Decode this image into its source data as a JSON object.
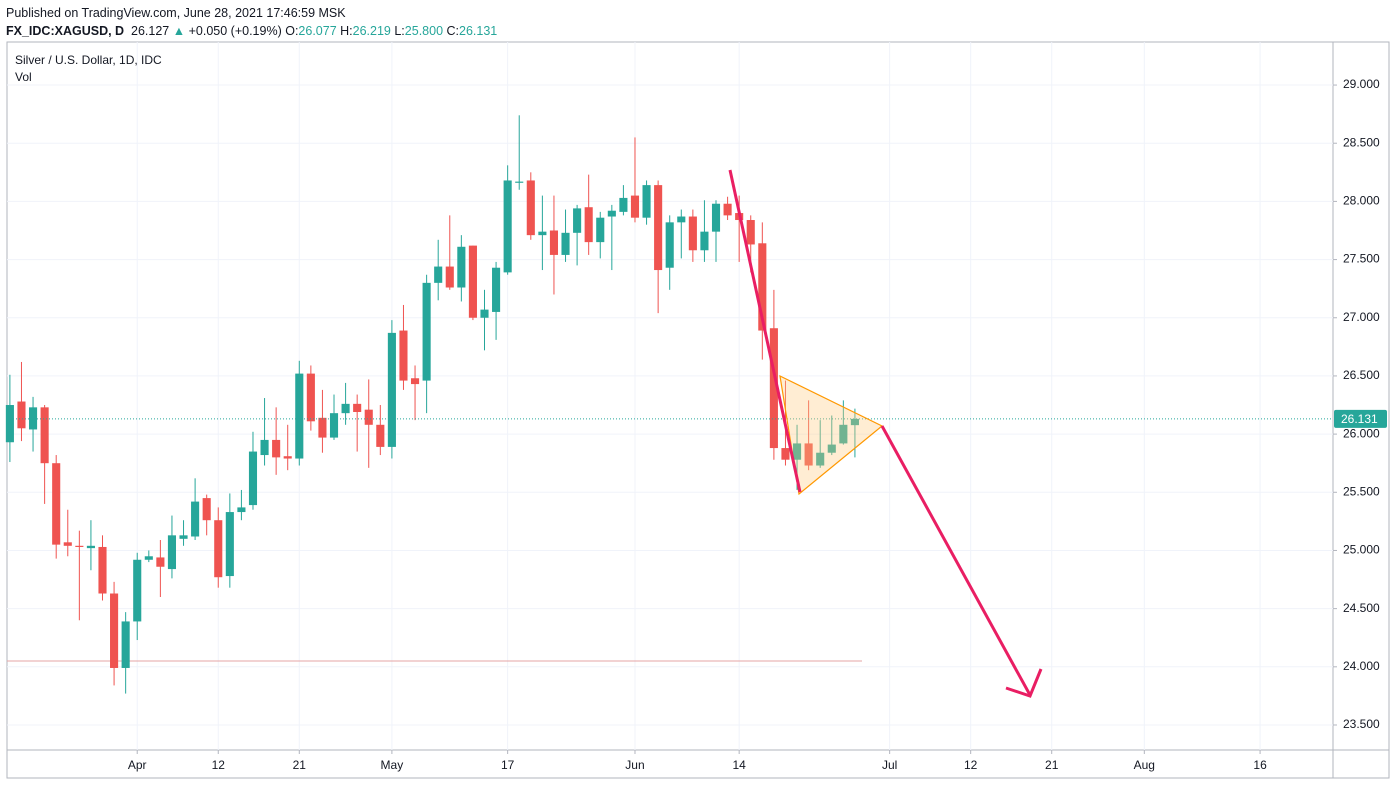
{
  "header": {
    "published": "Published on TradingView.com, June 28, 2021 17:46:59 MSK",
    "symbol": "FX_IDC:XAGUSD, D",
    "price": "26.127",
    "arrow": "▲",
    "change": "+0.050 (+0.19%)",
    "ohlc": [
      {
        "label": "O:",
        "value": "26.077"
      },
      {
        "label": "H:",
        "value": "26.219"
      },
      {
        "label": "L:",
        "value": "25.800"
      },
      {
        "label": "C:",
        "value": "26.131"
      }
    ]
  },
  "chart_data": {
    "type": "candlestick",
    "title": "Silver / U.S. Dollar, 1D, IDC",
    "volume_label": "Vol",
    "up_color": "#26a69a",
    "down_color": "#ef5350",
    "x": [
      "2021-03-17",
      "2021-03-18",
      "2021-03-19",
      "2021-03-22",
      "2021-03-23",
      "2021-03-24",
      "2021-03-25",
      "2021-03-26",
      "2021-03-29",
      "2021-03-30",
      "2021-03-31",
      "2021-04-01",
      "2021-04-02",
      "2021-04-05",
      "2021-04-06",
      "2021-04-07",
      "2021-04-08",
      "2021-04-09",
      "2021-04-12",
      "2021-04-13",
      "2021-04-14",
      "2021-04-15",
      "2021-04-16",
      "2021-04-19",
      "2021-04-20",
      "2021-04-21",
      "2021-04-22",
      "2021-04-23",
      "2021-04-26",
      "2021-04-27",
      "2021-04-28",
      "2021-04-29",
      "2021-04-30",
      "2021-05-03",
      "2021-05-04",
      "2021-05-05",
      "2021-05-06",
      "2021-05-07",
      "2021-05-10",
      "2021-05-11",
      "2021-05-12",
      "2021-05-13",
      "2021-05-14",
      "2021-05-17",
      "2021-05-18",
      "2021-05-19",
      "2021-05-20",
      "2021-05-21",
      "2021-05-24",
      "2021-05-25",
      "2021-05-26",
      "2021-05-27",
      "2021-05-28",
      "2021-05-31",
      "2021-06-01",
      "2021-06-02",
      "2021-06-03",
      "2021-06-04",
      "2021-06-07",
      "2021-06-08",
      "2021-06-09",
      "2021-06-10",
      "2021-06-11",
      "2021-06-14",
      "2021-06-15",
      "2021-06-16",
      "2021-06-17",
      "2021-06-18",
      "2021-06-21",
      "2021-06-22",
      "2021-06-23",
      "2021-06-24",
      "2021-06-25",
      "2021-06-28"
    ],
    "open": [
      25.93,
      26.28,
      26.04,
      26.23,
      25.75,
      25.07,
      25.04,
      25.02,
      25.03,
      24.63,
      23.99,
      24.39,
      24.92,
      24.94,
      24.84,
      25.1,
      25.12,
      25.45,
      25.26,
      24.78,
      25.33,
      25.39,
      25.82,
      25.95,
      25.81,
      25.79,
      26.52,
      26.14,
      25.97,
      26.18,
      26.26,
      26.21,
      26.08,
      25.89,
      26.89,
      26.48,
      26.46,
      27.3,
      27.44,
      27.26,
      27.62,
      27.0,
      27.05,
      27.39,
      28.16,
      28.18,
      27.71,
      27.75,
      27.54,
      27.73,
      27.95,
      27.65,
      27.87,
      27.91,
      28.05,
      27.86,
      28.14,
      27.43,
      27.82,
      27.87,
      27.58,
      27.74,
      27.98,
      27.9,
      27.84,
      27.64,
      26.91,
      25.88,
      25.78,
      25.92,
      25.73,
      25.84,
      25.92,
      26.077
    ],
    "high": [
      26.51,
      26.62,
      26.32,
      26.25,
      25.82,
      25.35,
      25.17,
      25.26,
      25.13,
      24.73,
      24.47,
      24.98,
      25.0,
      25.09,
      25.3,
      25.26,
      25.62,
      25.48,
      25.37,
      25.49,
      25.52,
      26.02,
      26.31,
      26.23,
      26.08,
      26.63,
      26.59,
      26.38,
      26.34,
      26.44,
      26.34,
      26.47,
      26.25,
      26.98,
      27.11,
      26.59,
      27.37,
      27.67,
      27.88,
      27.71,
      27.62,
      27.24,
      27.48,
      28.31,
      28.74,
      28.25,
      28.05,
      28.05,
      27.93,
      27.97,
      28.23,
      27.91,
      27.97,
      28.14,
      28.55,
      28.18,
      28.18,
      27.88,
      27.93,
      27.93,
      28.01,
      28.01,
      28.04,
      28.05,
      27.88,
      27.82,
      27.24,
      26.46,
      26.08,
      26.29,
      26.12,
      26.16,
      26.29,
      26.219
    ],
    "low": [
      25.76,
      25.94,
      25.85,
      25.4,
      24.93,
      24.95,
      24.4,
      24.83,
      24.57,
      23.84,
      23.77,
      24.23,
      24.9,
      24.6,
      24.76,
      25.04,
      25.09,
      25.13,
      24.68,
      24.68,
      25.26,
      25.35,
      25.73,
      25.65,
      25.69,
      25.73,
      26.03,
      25.84,
      25.95,
      26.08,
      25.85,
      25.71,
      25.82,
      25.79,
      26.38,
      26.12,
      26.18,
      27.15,
      27.24,
      27.14,
      26.98,
      26.72,
      26.81,
      27.37,
      28.1,
      27.67,
      27.41,
      27.2,
      27.48,
      27.45,
      27.54,
      27.51,
      27.41,
      27.88,
      27.82,
      27.8,
      27.04,
      27.24,
      27.51,
      27.48,
      27.48,
      27.48,
      27.84,
      27.48,
      27.39,
      26.64,
      25.78,
      25.73,
      25.52,
      25.69,
      25.71,
      25.82,
      25.91,
      25.8
    ],
    "close": [
      26.25,
      26.05,
      26.23,
      25.75,
      25.05,
      25.04,
      25.03,
      25.04,
      24.63,
      23.99,
      24.39,
      24.92,
      24.95,
      24.86,
      25.13,
      25.13,
      25.42,
      25.26,
      24.77,
      25.33,
      25.37,
      25.85,
      25.95,
      25.8,
      25.79,
      26.52,
      26.11,
      25.97,
      26.18,
      26.26,
      26.19,
      26.08,
      25.89,
      26.87,
      26.46,
      26.43,
      27.3,
      27.44,
      27.26,
      27.61,
      27.0,
      27.07,
      27.43,
      28.18,
      28.17,
      27.71,
      27.74,
      27.54,
      27.73,
      27.94,
      27.65,
      27.86,
      27.92,
      28.03,
      27.86,
      28.14,
      27.41,
      27.82,
      27.87,
      27.58,
      27.74,
      27.98,
      27.88,
      27.84,
      27.63,
      26.89,
      25.88,
      25.78,
      25.92,
      25.73,
      25.84,
      25.91,
      26.08,
      26.131
    ],
    "last_price": 26.131,
    "xlim": [
      "2021-03-17",
      "2021-08-24"
    ],
    "xticks": [
      {
        "value": "2021-04-01",
        "label": "Apr"
      },
      {
        "value": "2021-04-12",
        "label": "12"
      },
      {
        "value": "2021-04-21",
        "label": "21"
      },
      {
        "value": "2021-05-03",
        "label": "May"
      },
      {
        "value": "2021-05-17",
        "label": "17"
      },
      {
        "value": "2021-06-01",
        "label": "Jun"
      },
      {
        "value": "2021-06-14",
        "label": "14"
      },
      {
        "value": "2021-07-01",
        "label": "Jul"
      },
      {
        "value": "2021-07-12",
        "label": "12"
      },
      {
        "value": "2021-07-21",
        "label": "21"
      },
      {
        "value": "2021-08-02",
        "label": "Aug"
      },
      {
        "value": "2021-08-16",
        "label": "16"
      }
    ],
    "ylim": [
      23.285,
      29.37
    ],
    "yticks": [
      {
        "value": 23.5,
        "label": "23.500"
      },
      {
        "value": 24,
        "label": "24.000"
      },
      {
        "value": 24.5,
        "label": "24.500"
      },
      {
        "value": 25,
        "label": "25.000"
      },
      {
        "value": 25.5,
        "label": "25.500"
      },
      {
        "value": 26,
        "label": "26.000"
      },
      {
        "value": 26.5,
        "label": "26.500"
      },
      {
        "value": 27,
        "label": "27.000"
      },
      {
        "value": 27.5,
        "label": "27.500"
      },
      {
        "value": 28,
        "label": "28.000"
      },
      {
        "value": 28.5,
        "label": "28.500"
      },
      {
        "value": 29,
        "label": "29.000"
      }
    ],
    "grid": true
  }
}
